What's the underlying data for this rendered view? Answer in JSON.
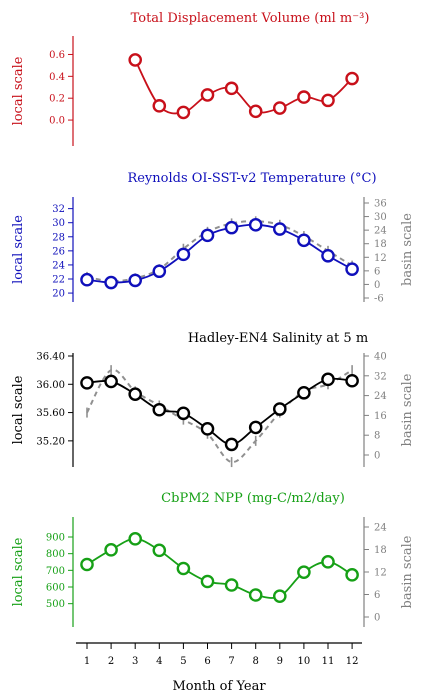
{
  "chart_data": {
    "type": "line",
    "xlabel": "Month of Year",
    "x_ticks": [
      "1",
      "2",
      "3",
      "4",
      "5",
      "6",
      "7",
      "8",
      "9",
      "10",
      "11",
      "12"
    ],
    "panels": [
      {
        "id": "displacement",
        "title": "Total Displacement Volume (ml m⁻³)",
        "color": "#c8101a",
        "local_label": "local scale",
        "local_ylim": [
          -0.1,
          0.65
        ],
        "local_ticks": [
          "0.6",
          "0.4",
          "0.2",
          "0.0"
        ],
        "local_tick_values": [
          0.6,
          0.4,
          0.2,
          0.0
        ],
        "x": [
          3,
          4,
          5,
          6,
          7,
          8,
          9,
          10,
          11,
          12
        ],
        "values": [
          0.55,
          0.13,
          0.07,
          0.23,
          0.29,
          0.08,
          0.11,
          0.21,
          0.18,
          0.38
        ]
      },
      {
        "id": "sst",
        "title": "Reynolds OI-SST-v2 Temperature (°C)",
        "color": "#1010bb",
        "local_label": "local scale",
        "basin_label": "basin scale",
        "local_ylim": [
          19.3,
          32.8
        ],
        "local_ticks": [
          "32",
          "30",
          "28",
          "26",
          "24",
          "22",
          "20"
        ],
        "local_tick_values": [
          32,
          30,
          28,
          26,
          24,
          22,
          20
        ],
        "basin_ylim": [
          -6,
          36
        ],
        "basin_ticks": [
          "36",
          "30",
          "24",
          "18",
          "12",
          "6",
          "0",
          "-6"
        ],
        "basin_tick_values": [
          36,
          30,
          24,
          18,
          12,
          6,
          0,
          -6
        ],
        "x": [
          1,
          2,
          3,
          4,
          5,
          6,
          7,
          8,
          9,
          10,
          11,
          12
        ],
        "values": [
          21.9,
          21.5,
          21.8,
          23.1,
          25.5,
          28.2,
          29.3,
          29.7,
          29.1,
          27.5,
          25.3,
          23.4
        ],
        "basin": {
          "color": "#909090",
          "values": [
            22.3,
            21.7,
            22.1,
            23.4,
            26.3,
            28.7,
            29.9,
            30.2,
            29.7,
            28.1,
            26.0,
            23.9
          ]
        }
      },
      {
        "id": "salinity",
        "title": "Hadley-EN4 Salinity at 5 m",
        "color": "#000000",
        "local_label": "local scale",
        "basin_label": "basin scale",
        "local_ylim": [
          35.0,
          36.4
        ],
        "local_ticks": [
          "36.40",
          "36.00",
          "35.60",
          "35.20"
        ],
        "local_tick_values": [
          36.4,
          36.0,
          35.6,
          35.2
        ],
        "basin_ylim": [
          0,
          40
        ],
        "basin_ticks": [
          "40",
          "32",
          "24",
          "16",
          "8",
          "0"
        ],
        "basin_tick_values": [
          40,
          32,
          24,
          16,
          8,
          0
        ],
        "x": [
          1,
          2,
          3,
          4,
          5,
          6,
          7,
          8,
          9,
          10,
          11,
          12
        ],
        "values": [
          36.02,
          36.04,
          35.86,
          35.64,
          35.59,
          35.37,
          35.15,
          35.39,
          35.65,
          35.88,
          36.07,
          36.05
        ],
        "basin": {
          "color": "#909090",
          "values": [
            35.6,
            36.2,
            35.9,
            35.7,
            35.5,
            35.3,
            34.9,
            35.2,
            35.6,
            35.9,
            36.0,
            36.2
          ]
        }
      },
      {
        "id": "npp",
        "title": "CbPM2 NPP (mg-C/m2/day)",
        "color": "#16a016",
        "local_label": "local scale",
        "basin_label": "basin scale",
        "local_ylim": [
          420,
          960
        ],
        "local_ticks": [
          "900",
          "800",
          "700",
          "600",
          "500"
        ],
        "local_tick_values": [
          900,
          800,
          700,
          600,
          500
        ],
        "basin_ylim": [
          0,
          24
        ],
        "basin_ticks": [
          "24",
          "18",
          "12",
          "6",
          "0"
        ],
        "basin_tick_values": [
          24,
          18,
          12,
          6,
          0
        ],
        "x": [
          1,
          2,
          3,
          4,
          5,
          6,
          7,
          8,
          9,
          10,
          11,
          12
        ],
        "values": [
          735,
          823,
          889,
          820,
          711,
          633,
          612,
          552,
          545,
          689,
          751,
          673
        ]
      }
    ]
  }
}
